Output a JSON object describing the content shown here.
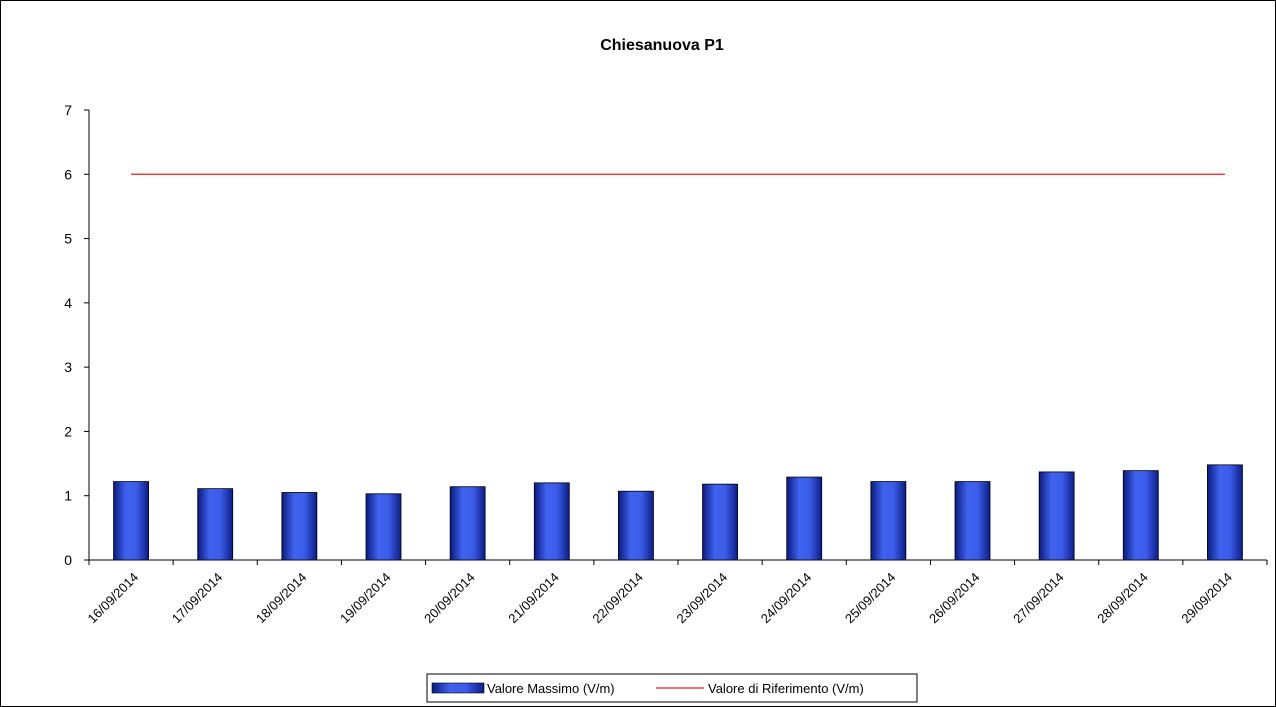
{
  "chart_data": {
    "type": "bar",
    "title": "Chiesanuova P1",
    "xlabel": "",
    "ylabel": "",
    "categories": [
      "16/09/2014",
      "17/09/2014",
      "18/09/2014",
      "19/09/2014",
      "20/09/2014",
      "21/09/2014",
      "22/09/2014",
      "23/09/2014",
      "24/09/2014",
      "25/09/2014",
      "26/09/2014",
      "27/09/2014",
      "28/09/2014",
      "29/09/2014"
    ],
    "series": [
      {
        "name": "Valore Massimo (V/m)",
        "type": "bar",
        "color": "#2b4fd8",
        "values": [
          1.22,
          1.11,
          1.05,
          1.03,
          1.14,
          1.2,
          1.07,
          1.18,
          1.29,
          1.22,
          1.22,
          1.37,
          1.39,
          1.48
        ]
      },
      {
        "name": "Valore di Riferimento (V/m)",
        "type": "line",
        "color": "#e02020",
        "values": [
          6,
          6,
          6,
          6,
          6,
          6,
          6,
          6,
          6,
          6,
          6,
          6,
          6,
          6
        ]
      }
    ],
    "ylim": [
      0,
      7
    ],
    "yticks": [
      0,
      1,
      2,
      3,
      4,
      5,
      6,
      7
    ],
    "grid": false,
    "legend_position": "bottom"
  }
}
